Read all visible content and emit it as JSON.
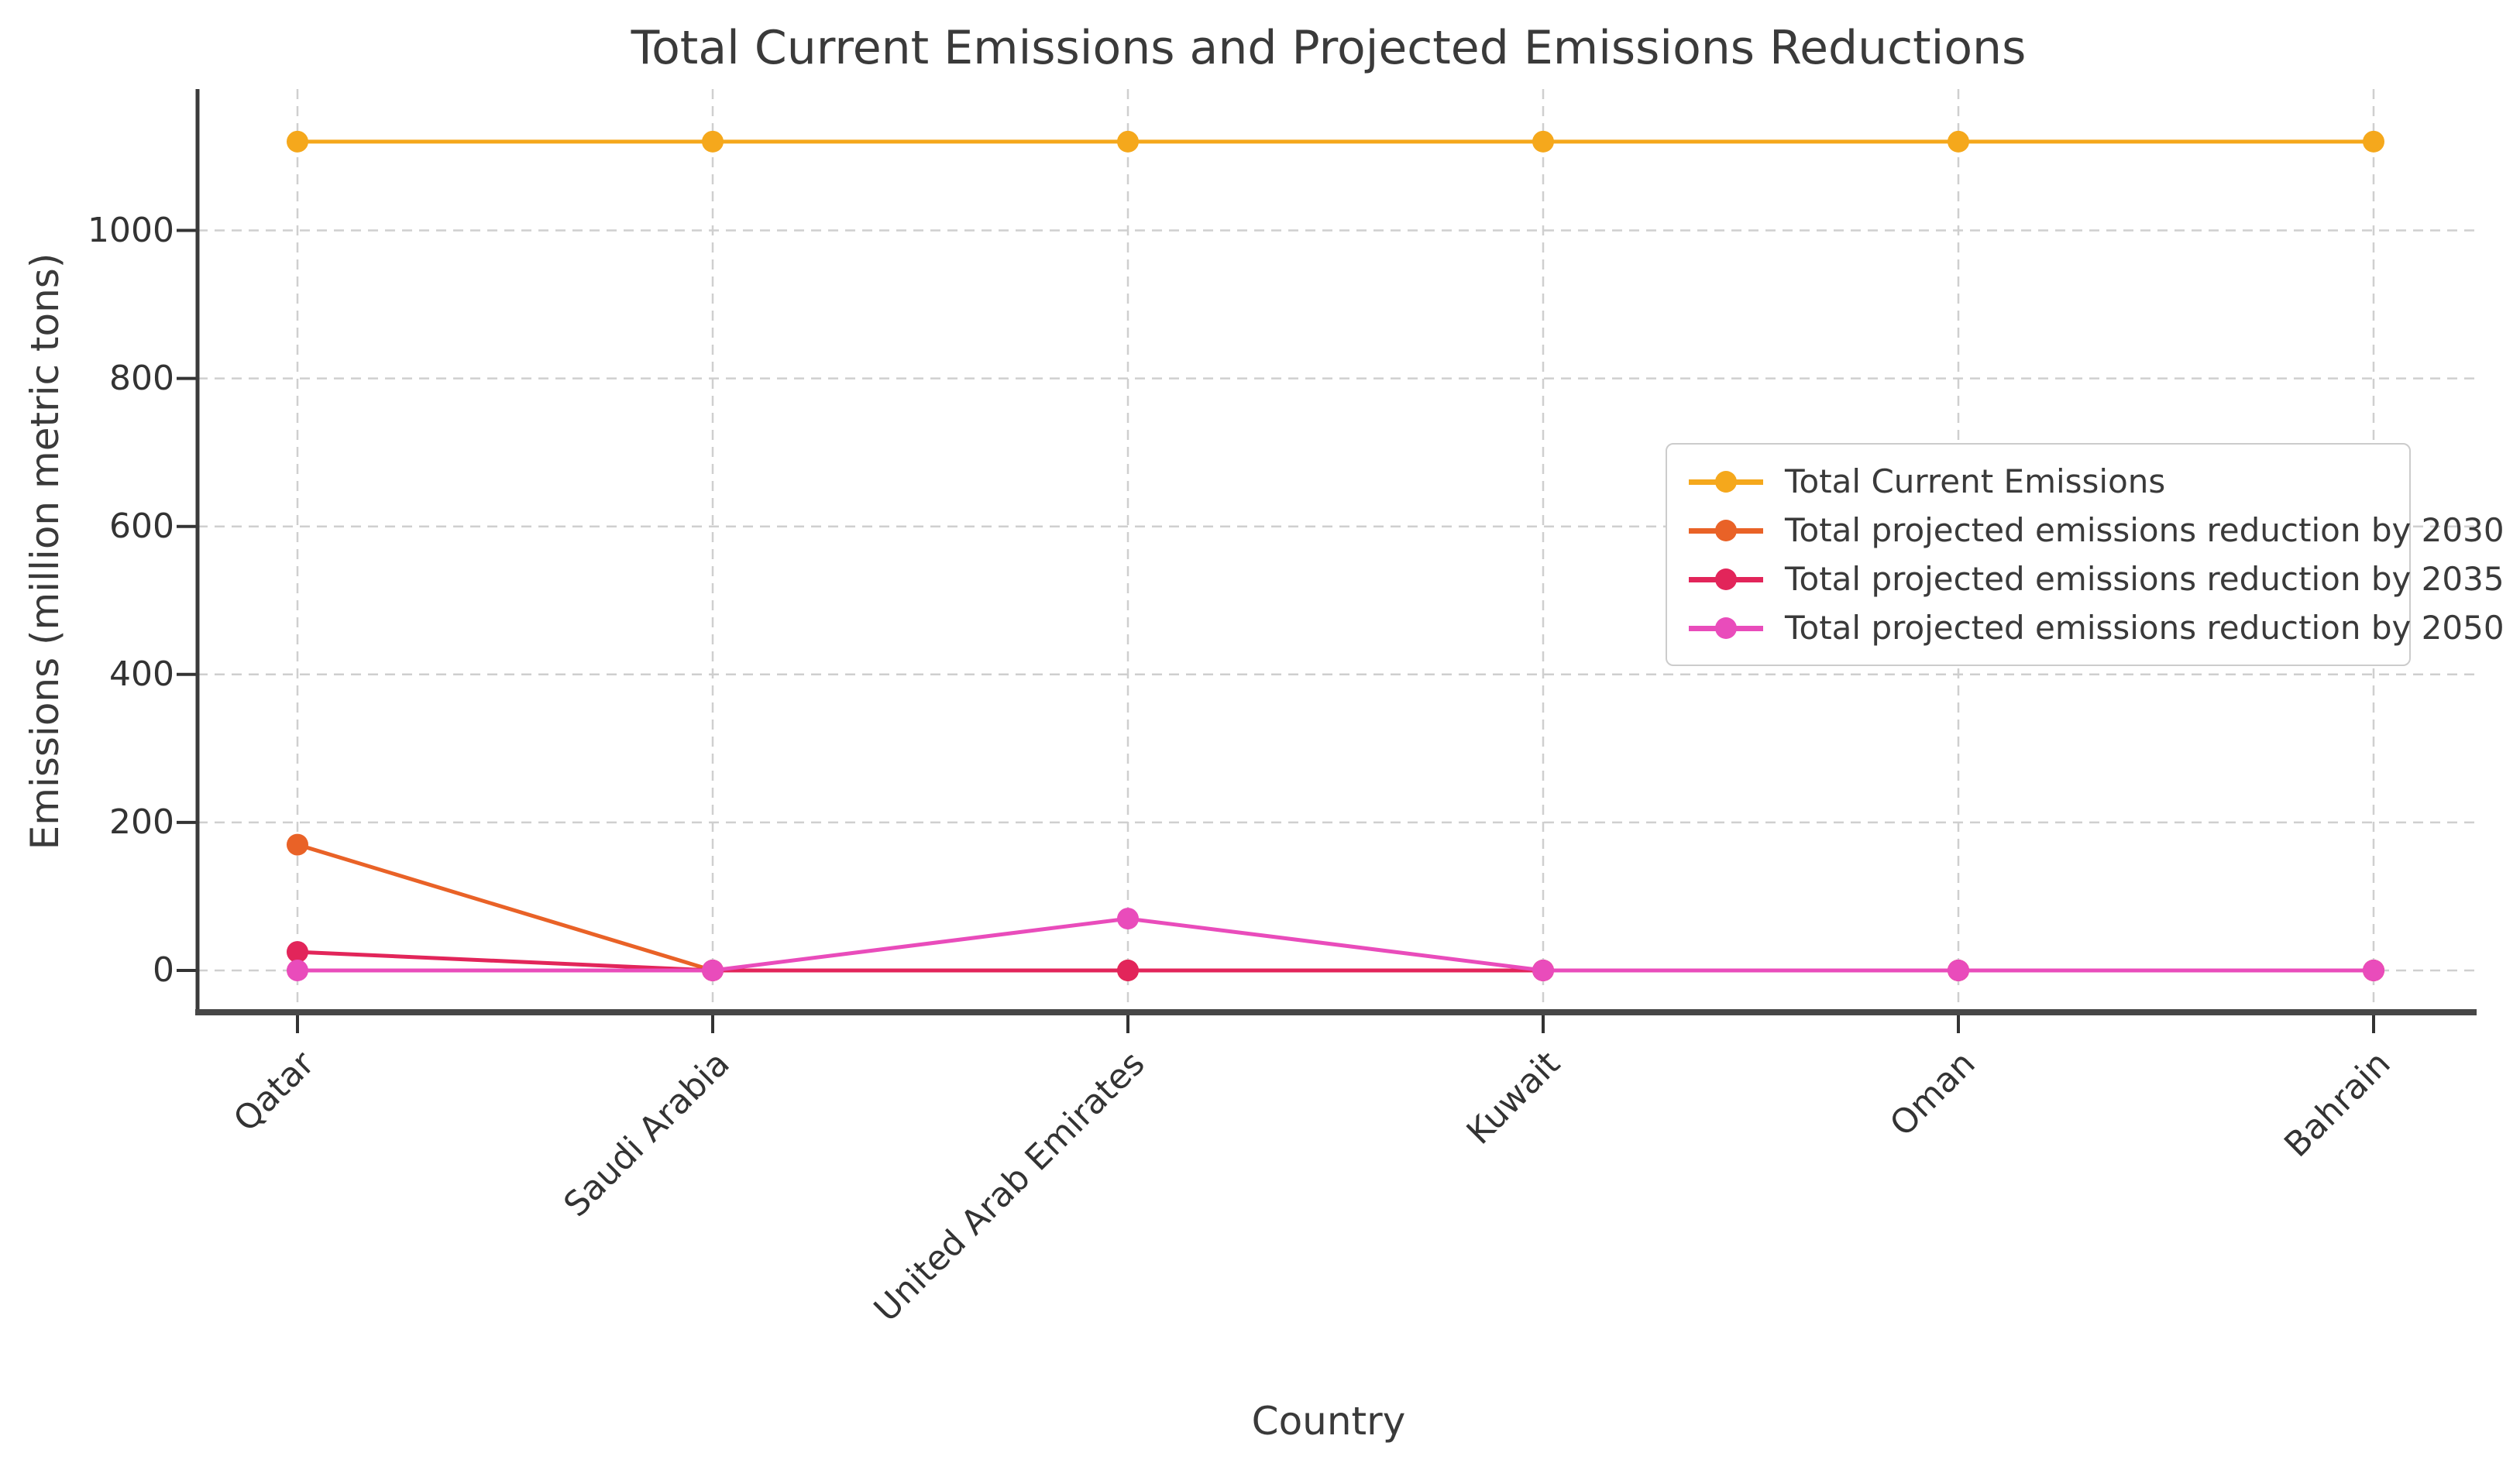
{
  "chart_data": {
    "type": "line",
    "title": "Total Current Emissions and Projected Emissions Reductions",
    "xlabel": "Country",
    "ylabel": "Emissions (million metric tons)",
    "categories": [
      "Qatar",
      "Saudi Arabia",
      "United Arab Emirates",
      "Kuwait",
      "Oman",
      "Bahrain"
    ],
    "series": [
      {
        "name": "Total Current Emissions",
        "color": "#F5A81C",
        "values": [
          1120,
          1120,
          1120,
          1120,
          1120,
          1120
        ]
      },
      {
        "name": "Total projected emissions reduction by 2030",
        "color": "#E96227",
        "values": [
          170,
          0,
          0,
          0,
          0,
          0
        ]
      },
      {
        "name": "Total projected emissions reduction by 2035",
        "color": "#E2255A",
        "values": [
          25,
          0,
          0,
          0,
          0,
          0
        ]
      },
      {
        "name": "Total projected emissions reduction by 2050",
        "color": "#E94CBB",
        "values": [
          0,
          0,
          70,
          0,
          0,
          0
        ]
      }
    ],
    "yticks": [
      0,
      200,
      400,
      600,
      800,
      1000
    ],
    "ylim": [
      -55,
      1190
    ],
    "grid": true,
    "grid_style": "dashed",
    "legend_position": "center right",
    "marker": "o"
  },
  "colors": {
    "text": "#3a3a3a",
    "tick_text": "#333333",
    "grid": "#cfcfcf",
    "spine_left": "#3a3a3a",
    "spine_bottom": "#474747",
    "legend_border": "#cccccc",
    "background": "#ffffff"
  }
}
